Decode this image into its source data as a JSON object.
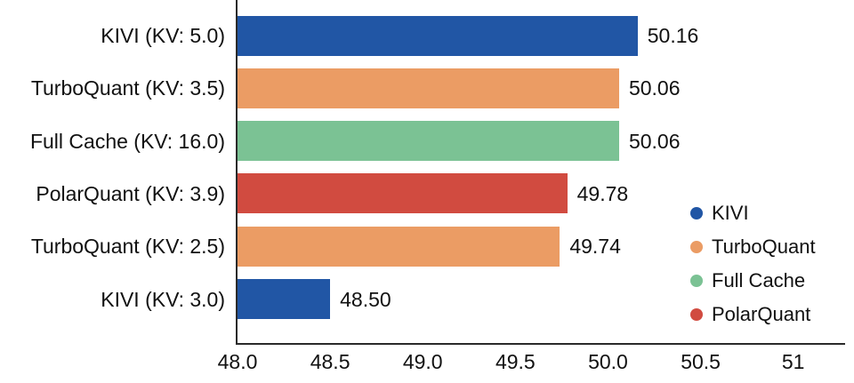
{
  "chart_data": {
    "type": "bar",
    "orientation": "horizontal",
    "title": "",
    "xlabel": "",
    "ylabel": "",
    "grid": false,
    "categories": [
      "KIVI (KV: 5.0)",
      "TurboQuant (KV: 3.5)",
      "Full Cache (KV: 16.0)",
      "PolarQuant (KV: 3.9)",
      "TurboQuant (KV: 2.5)",
      "KIVI (KV: 3.0)"
    ],
    "values": [
      50.16,
      50.06,
      50.06,
      49.78,
      49.74,
      48.5
    ],
    "value_labels": [
      "50.16",
      "50.06",
      "50.06",
      "49.78",
      "49.74",
      "48.50"
    ],
    "bar_series": [
      "KIVI",
      "TurboQuant",
      "Full Cache",
      "PolarQuant",
      "TurboQuant",
      "KIVI"
    ],
    "xlim": [
      48,
      51.28
    ],
    "xticks": [
      48.0,
      48.5,
      49.0,
      49.5,
      50.0,
      50.5,
      51
    ],
    "xtick_labels": [
      "48.0",
      "48.5",
      "49.0",
      "49.5",
      "50.0",
      "50.5",
      "51"
    ],
    "series_colors": {
      "KIVI": "#2156a5",
      "TurboQuant": "#eb9c64",
      "Full Cache": "#7bc294",
      "PolarQuant": "#d14b40"
    },
    "legend": {
      "position": "right",
      "entries": [
        {
          "label": "KIVI",
          "color": "#2156a5"
        },
        {
          "label": "TurboQuant",
          "color": "#eb9c64"
        },
        {
          "label": "Full Cache",
          "color": "#7bc294"
        },
        {
          "label": "PolarQuant",
          "color": "#d14b40"
        }
      ]
    },
    "text_color": "#111111",
    "axis_color": "#2a2a2a"
  }
}
